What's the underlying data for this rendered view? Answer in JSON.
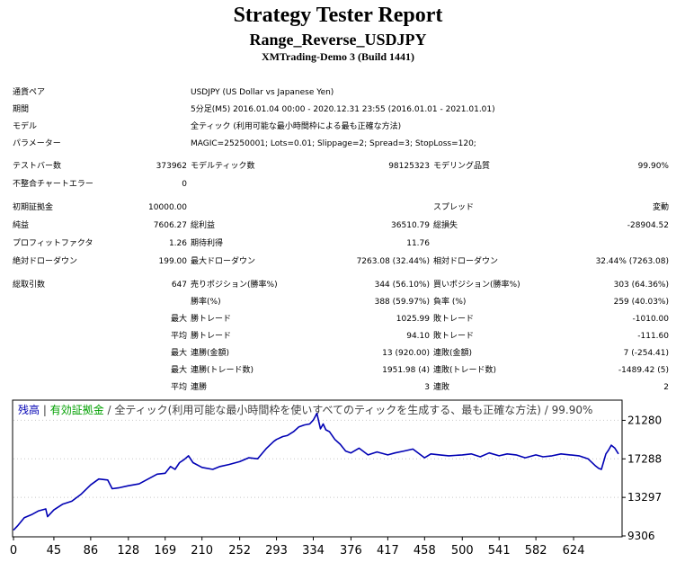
{
  "header": {
    "title": "Strategy Tester Report",
    "subtitle": "Range_Reverse_USDJPY",
    "server": "XMTrading-Demo 3 (Build 1441)"
  },
  "info": [
    {
      "label": "通貨ペア",
      "value": "USDJPY (US Dollar vs Japanese Yen)"
    },
    {
      "label": "期間",
      "value": "5分足(M5) 2016.01.04 00:00 - 2020.12.31 23:55 (2016.01.01 - 2021.01.01)"
    },
    {
      "label": "モデル",
      "value": "全ティック (利用可能な最小時間枠による最も正確な方法)"
    },
    {
      "label": "パラメーター",
      "value": "MAGIC=25250001; Lots=0.01; Slippage=2; Spread=3; StopLoss=120;"
    }
  ],
  "stats": {
    "bars_label": "テストバー数",
    "bars": "373962",
    "ticks_label": "モデルティック数",
    "ticks": "98125323",
    "quality_label": "モデリング品質",
    "quality": "99.90%",
    "mismatch_label": "不整合チャートエラー",
    "mismatch": "0",
    "deposit_label": "初期証拠金",
    "deposit": "10000.00",
    "spread_label": "スプレッド",
    "spread": "変動",
    "net_label": "純益",
    "net": "7606.27",
    "gross_profit_label": "総利益",
    "gross_profit": "36510.79",
    "gross_loss_label": "総損失",
    "gross_loss": "-28904.52",
    "pf_label": "プロフィットファクタ",
    "pf": "1.26",
    "expected_label": "期待利得",
    "expected": "11.76",
    "abs_dd_label": "絶対ドローダウン",
    "abs_dd": "199.00",
    "max_dd_label": "最大ドローダウン",
    "max_dd": "7263.08 (32.44%)",
    "rel_dd_label": "相対ドローダウン",
    "rel_dd": "32.44% (7263.08)",
    "trades_label": "総取引数",
    "trades": "647",
    "short_label": "売りポジション(勝率%)",
    "short": "344 (56.10%)",
    "long_label": "買いポジション(勝率%)",
    "long": "303 (64.36%)",
    "win_label": "勝率(%)",
    "win": "388 (59.97%)",
    "loss_label": "負率 (%)",
    "loss": "259 (40.03%)",
    "rows": [
      {
        "prefix": "最大",
        "l1": "勝トレード",
        "v1": "1025.99",
        "l2": "敗トレード",
        "v2": "-1010.00"
      },
      {
        "prefix": "平均",
        "l1": "勝トレード",
        "v1": "94.10",
        "l2": "敗トレード",
        "v2": "-111.60"
      },
      {
        "prefix": "最大",
        "l1": "連勝(金額)",
        "v1": "13 (920.00)",
        "l2": "連敗(金額)",
        "v2": "7 (-254.41)"
      },
      {
        "prefix": "最大",
        "l1": "連勝(トレード数)",
        "v1": "1951.98 (4)",
        "l2": "連敗(トレード数)",
        "v2": "-1489.42 (5)"
      },
      {
        "prefix": "平均",
        "l1": "連勝",
        "v1": "3",
        "l2": "連敗",
        "v2": "2"
      }
    ]
  },
  "chart_data": {
    "type": "line",
    "legend": {
      "balance": "残高",
      "equity": "有効証拠金",
      "rest": "全ティック(利用可能な最小時間枠を使いすべてのティックを生成する、最も正確な方法)",
      "quality": "99.90%",
      "sep": " | ",
      "sep2": " / "
    },
    "colors": {
      "balance": "#0000b4",
      "equity": "#00a000",
      "grid": "#c8c8c8"
    },
    "x_ticks": [
      "0",
      "45",
      "86",
      "128",
      "169",
      "210",
      "252",
      "293",
      "334",
      "376",
      "417",
      "458",
      "500",
      "541",
      "582",
      "624"
    ],
    "y_ticks": [
      "21280",
      "17288",
      "13297",
      "9306"
    ],
    "xlim": [
      0,
      677
    ],
    "ylim": [
      9306,
      23276
    ],
    "series": [
      {
        "name": "残高",
        "x": [
          0,
          5,
          12,
          20,
          28,
          36,
          38,
          45,
          55,
          65,
          75,
          86,
          95,
          105,
          110,
          118,
          128,
          140,
          150,
          160,
          169,
          175,
          180,
          185,
          190,
          195,
          200,
          210,
          222,
          230,
          240,
          252,
          262,
          272,
          282,
          290,
          293,
          300,
          305,
          312,
          318,
          324,
          330,
          334,
          338,
          342,
          345,
          348,
          352,
          358,
          364,
          370,
          376,
          385,
          395,
          405,
          417,
          425,
          435,
          445,
          458,
          465,
          475,
          485,
          500,
          510,
          520,
          530,
          541,
          550,
          560,
          570,
          582,
          590,
          600,
          610,
          620,
          630,
          640,
          648,
          652,
          655,
          660,
          663,
          666,
          670,
          674
        ],
        "y": [
          9900,
          10400,
          11200,
          11500,
          11900,
          12100,
          11300,
          12000,
          12600,
          12900,
          13600,
          14600,
          15200,
          15100,
          14200,
          14300,
          14500,
          14700,
          15200,
          15700,
          15800,
          16500,
          16200,
          16900,
          17200,
          17600,
          16900,
          16400,
          16200,
          16500,
          16700,
          17000,
          17400,
          17300,
          18400,
          19100,
          19300,
          19600,
          19700,
          20100,
          20600,
          20800,
          20900,
          21300,
          22000,
          20400,
          20900,
          20300,
          20100,
          19300,
          18800,
          18100,
          17900,
          18400,
          17700,
          18000,
          17700,
          17900,
          18100,
          18300,
          17400,
          17800,
          17700,
          17600,
          17700,
          17800,
          17500,
          17900,
          17600,
          17800,
          17700,
          17400,
          17700,
          17500,
          17600,
          17800,
          17700,
          17600,
          17300,
          16600,
          16300,
          16200,
          17800,
          18200,
          18700,
          18400,
          17800
        ]
      }
    ]
  }
}
